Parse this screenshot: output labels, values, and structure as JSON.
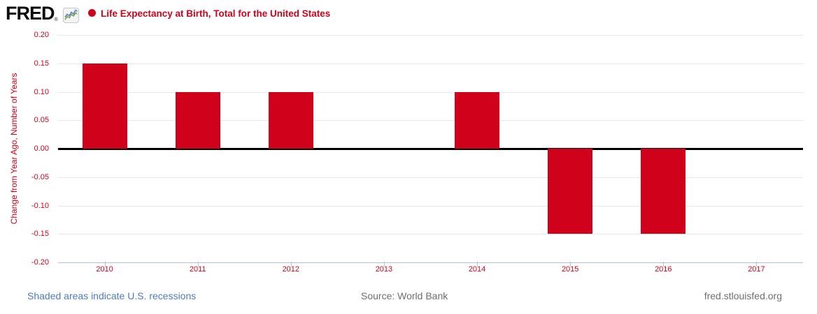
{
  "header": {
    "logo_text": "FRED",
    "registered_mark": "®",
    "legend_marker": "red-dot",
    "series_title": "Life Expectancy at Birth, Total for the United States"
  },
  "chart_data": {
    "type": "bar",
    "title": "Life Expectancy at Birth, Total for the United States",
    "ylabel": "Change from Year Ago, Number of Years",
    "xlabel": "",
    "categories": [
      "2010",
      "2011",
      "2012",
      "2013",
      "2014",
      "2015",
      "2016",
      "2017"
    ],
    "values": [
      0.15,
      0.1,
      0.1,
      0.0,
      0.1,
      -0.15,
      -0.15,
      null
    ],
    "ylim": [
      -0.2,
      0.2
    ],
    "ytick_labels": [
      "0.20",
      "0.15",
      "0.10",
      "0.05",
      "0.00",
      "-0.05",
      "-0.10",
      "-0.15",
      "-0.20"
    ],
    "grid": true,
    "legend_position": "top"
  },
  "colors": {
    "bar": "#d0021b",
    "series_red": "#d0021b",
    "tick_label_red": "#d0021b",
    "grid": "#e6e6e6",
    "zero_line": "#000000",
    "axis_blue": "#b3c1dc",
    "footer_link_blue": "#4d7cbb",
    "footer_gray": "#6e6e6e",
    "logo_black": "#0d0d0d"
  },
  "footer": {
    "recession_note": "Shaded areas indicate U.S. recessions",
    "source": "Source: World Bank",
    "site": "fred.stlouisfed.org"
  }
}
